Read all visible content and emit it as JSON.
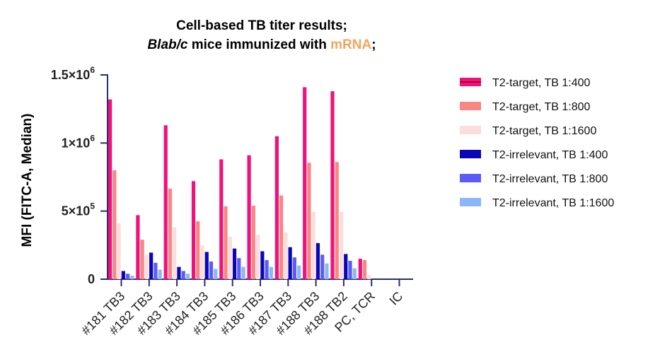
{
  "chart_data": {
    "type": "bar",
    "title_line1": "Cell-based TB titer results;",
    "title_line2_part1": "Blab/c",
    "title_line2_part2": " mice immunized with ",
    "title_line2_part3": "mRNA",
    "title_line2_part4": ";",
    "highlight_color": "#F4A460",
    "xlabel": "",
    "ylabel": "MFI (FITC-A, Median)",
    "ylim": [
      0,
      1500000
    ],
    "yticks": [
      {
        "value": 0,
        "base": "0",
        "exp": ""
      },
      {
        "value": 500000,
        "base": "5×10",
        "exp": "5"
      },
      {
        "value": 1000000,
        "base": "1×10",
        "exp": "6"
      },
      {
        "value": 1500000,
        "base": "1.5×10",
        "exp": "6"
      }
    ],
    "categories": [
      "#181 TB3",
      "#182 TB3",
      "#183 TB3",
      "#184 TB3",
      "#185 TB3",
      "#186 TB3",
      "#187 TB3",
      "#188 TB3",
      "#188 TB2",
      "PC, TCR",
      "IC"
    ],
    "series": [
      {
        "name": "T2-target, TB 1:400",
        "color": "#F0127A",
        "values": [
          1320000,
          470000,
          1130000,
          720000,
          880000,
          910000,
          1050000,
          1410000,
          1380000,
          150000,
          0
        ]
      },
      {
        "name": "T2-target, TB 1:800",
        "color": "#FA8683",
        "values": [
          800000,
          290000,
          665000,
          425000,
          535000,
          540000,
          615000,
          855000,
          860000,
          140000,
          0
        ]
      },
      {
        "name": "T2-target, TB 1:1600",
        "color": "#FCDCDC",
        "values": [
          410000,
          180000,
          380000,
          250000,
          310000,
          325000,
          345000,
          495000,
          495000,
          30000,
          0
        ]
      },
      {
        "name": "T2-irrelevant, TB 1:400",
        "color": "#0A06B8",
        "values": [
          60000,
          195000,
          90000,
          200000,
          225000,
          205000,
          235000,
          265000,
          185000,
          0,
          0
        ]
      },
      {
        "name": "T2-irrelevant, TB 1:800",
        "color": "#5C5CF5",
        "values": [
          40000,
          120000,
          60000,
          130000,
          155000,
          140000,
          160000,
          180000,
          135000,
          0,
          0
        ]
      },
      {
        "name": "T2-irrelevant, TB 1:1600",
        "color": "#8CB6F7",
        "values": [
          25000,
          70000,
          40000,
          75000,
          90000,
          90000,
          100000,
          115000,
          80000,
          0,
          0
        ]
      }
    ],
    "legend_position": "right",
    "grid": false
  }
}
